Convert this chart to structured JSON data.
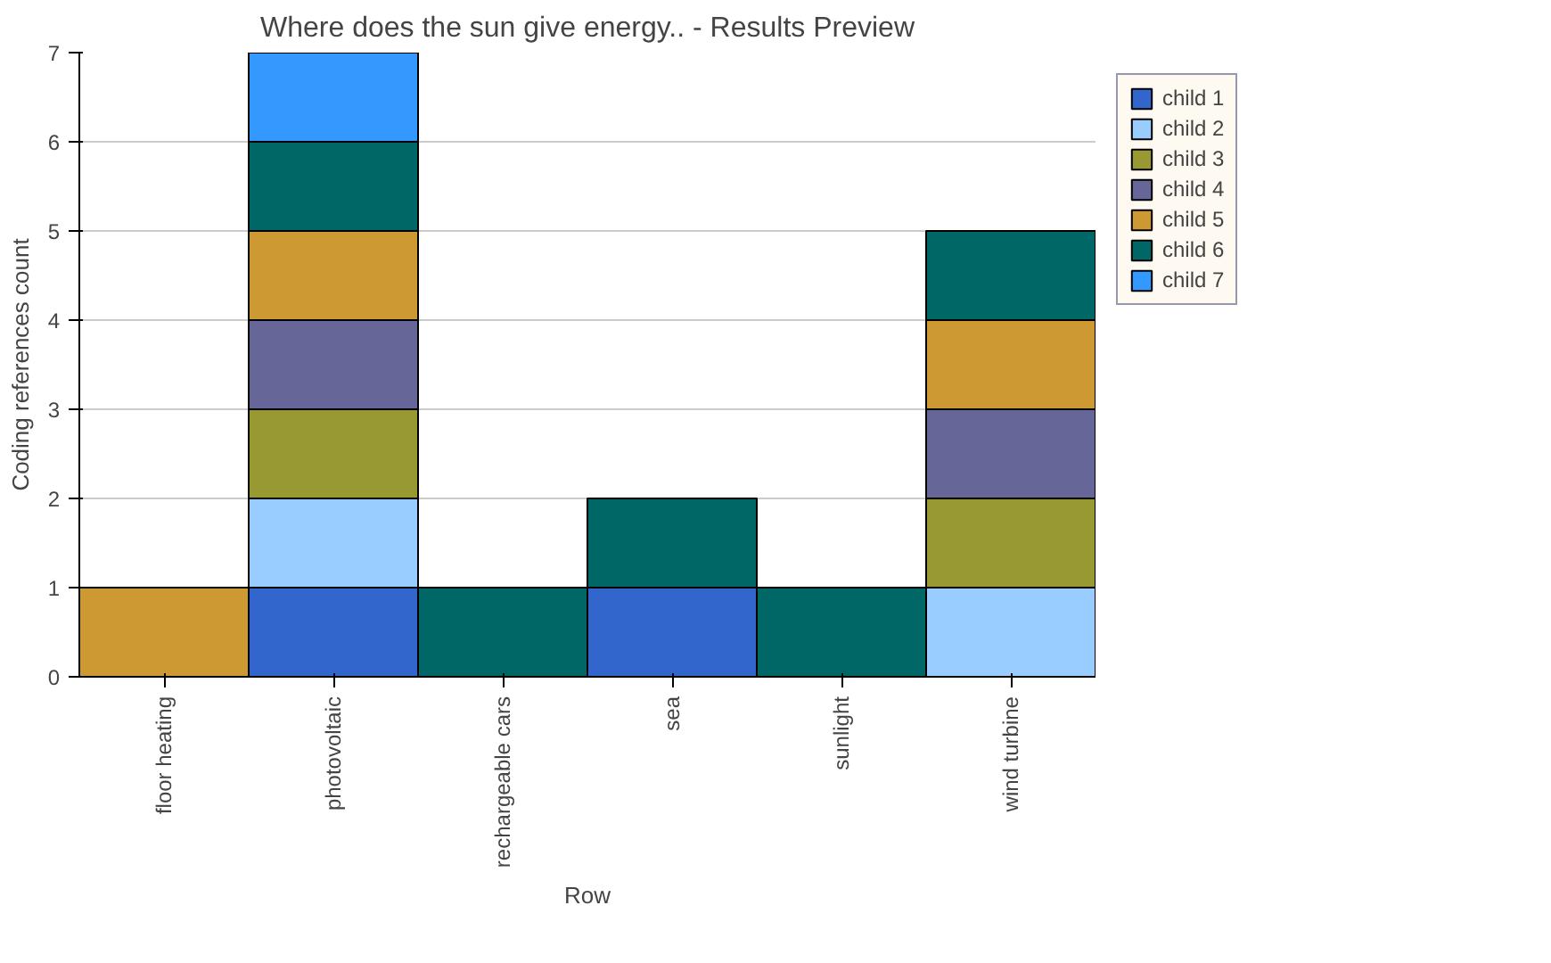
{
  "chart_data": {
    "type": "bar",
    "title": "Where does the sun give energy.. - Results Preview",
    "xlabel": "Row",
    "ylabel": "Coding references count",
    "categories": [
      "floor heating",
      "photovoltaic",
      "rechargeable cars",
      "sea",
      "sunlight",
      "wind turbine"
    ],
    "stacked": true,
    "ylim": [
      0,
      7
    ],
    "yticks": [
      0,
      1,
      2,
      3,
      4,
      5,
      6,
      7
    ],
    "grid": "y",
    "legend": "right",
    "series": [
      {
        "name": "child 1",
        "color": "#3366cc",
        "values": [
          null,
          1,
          null,
          1,
          null,
          null
        ]
      },
      {
        "name": "child 2",
        "color": "#99ccff",
        "values": [
          null,
          1,
          null,
          null,
          null,
          1
        ]
      },
      {
        "name": "child 3",
        "color": "#999933",
        "values": [
          null,
          1,
          null,
          null,
          null,
          1
        ]
      },
      {
        "name": "child 4",
        "color": "#666699",
        "values": [
          null,
          1,
          null,
          null,
          null,
          1
        ]
      },
      {
        "name": "child 5",
        "color": "#cc9933",
        "values": [
          1,
          1,
          null,
          null,
          null,
          1
        ]
      },
      {
        "name": "child 6",
        "color": "#006666",
        "values": [
          null,
          1,
          1,
          1,
          1,
          1
        ]
      },
      {
        "name": "child 7",
        "color": "#3399ff",
        "values": [
          null,
          1,
          null,
          null,
          null,
          null
        ]
      }
    ]
  }
}
